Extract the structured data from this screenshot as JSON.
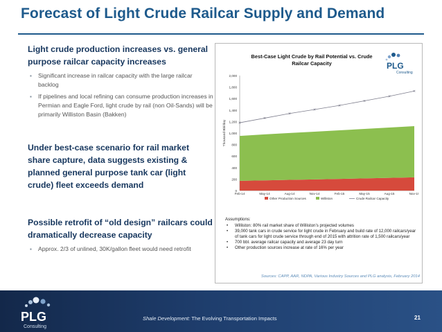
{
  "slide": {
    "title": "Forecast of Light Crude Railcar Supply and Demand",
    "page_number": "21",
    "footer_italic": "Shale Development:",
    "footer_rest": " The Evolving Transportation Impacts",
    "brand": "PLG",
    "brand_sub": "Consulting"
  },
  "left": {
    "heading1": "Light crude production increases vs. general purpose railcar capacity increases",
    "bullets1": [
      "Significant increase in railcar capacity with the large railcar backlog",
      "If pipelines and local refining can consume production increases in Permian and Eagle Ford, light crude by rail (non Oil-Sands) will be primarily Williston Basin (Bakken)"
    ],
    "heading2": "Under best-case scenario for rail market share capture, data suggests existing & planned general purpose tank car (light crude) fleet exceeds demand",
    "heading3": "Possible retrofit of “old design” railcars could dramatically decrease capacity",
    "bullets3": [
      "Approx. 2/3 of unlined, 30K/gallon fleet would need retrofit"
    ]
  },
  "assumptions": {
    "heading": "Assumptions:",
    "items": [
      "Williston:  80% rail market share of Williston’s projected volumes",
      "39,000 tank cars in crude service for light crude in February and build rate of 12,000 railcars/year of tank cars for light crude service through end of 2015 with attrition rate of 1,500 railcars/year",
      "700 bbl. average railcar capacity and average 23 day turn",
      "Other production sources increase at rate of 16% per year"
    ]
  },
  "sources": "Sources:  CAPP, AAR, NDPA, Various Industry Sources and PLG analysis, February 2014",
  "colors": {
    "title_blue": "#1e5a8c",
    "williston": "#8cbf4f",
    "other": "#d64a3c",
    "capacity_line": "#7d7d8c"
  },
  "chart_data": {
    "type": "area",
    "title": "Best-Case Light Crude by Rail Potential vs. Crude Railcar Capacity",
    "ylabel": "Thousand Bbl/day",
    "xlabel": "",
    "categories": [
      "Feb-14",
      "May-14",
      "Aug-14",
      "Nov-14",
      "Feb-15",
      "May-15",
      "Aug-15",
      "Nov-15"
    ],
    "y_ticks": [
      "0",
      "200",
      "400",
      "600",
      "800",
      "1,000",
      "1,200",
      "1,400",
      "1,600",
      "1,800",
      "2,000"
    ],
    "ylim": [
      0,
      2000
    ],
    "grid": false,
    "legend_position": "bottom",
    "series": [
      {
        "name": "Other Production Sources",
        "kind": "area",
        "values": [
          170,
          178,
          186,
          194,
          203,
          212,
          221,
          230
        ]
      },
      {
        "name": "Williston",
        "kind": "area",
        "values": [
          780,
          800,
          815,
          830,
          845,
          860,
          875,
          890
        ]
      },
      {
        "name": "Crude Railcar Capacity",
        "kind": "line",
        "values": [
          1180,
          1260,
          1340,
          1410,
          1480,
          1560,
          1640,
          1730
        ]
      }
    ]
  }
}
